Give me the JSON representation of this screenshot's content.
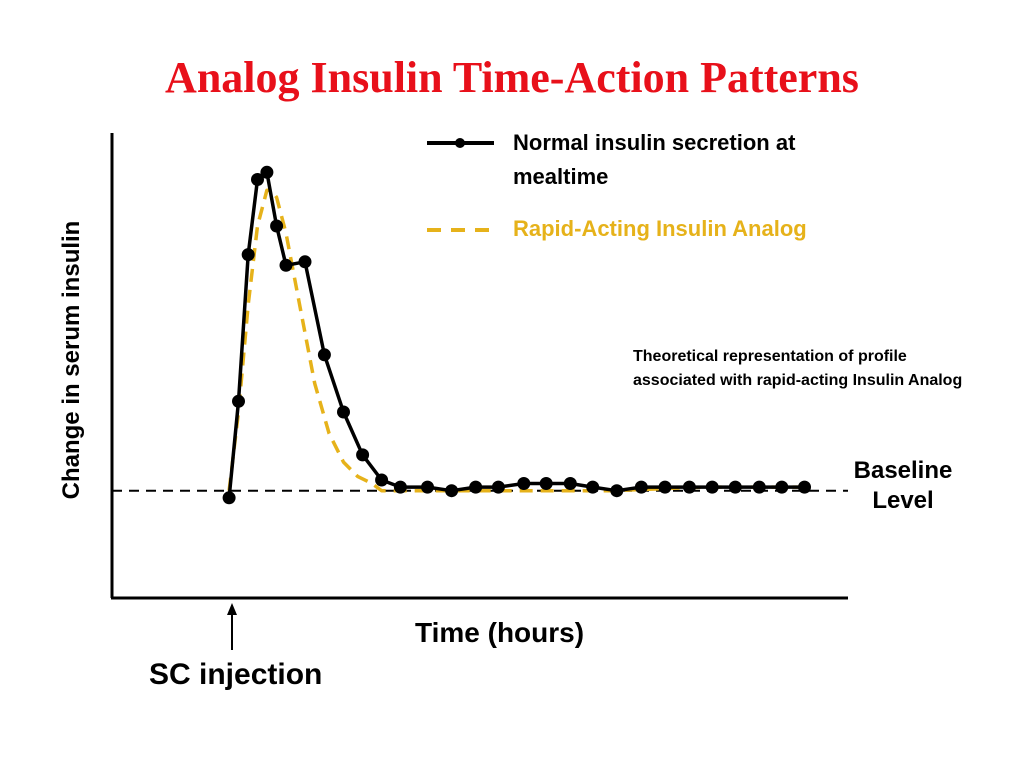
{
  "title": "Analog Insulin Time-Action Patterns",
  "legend": {
    "normal_label": "Normal insulin secretion at mealtime",
    "analog_label": "Rapid-Acting Insulin Analog"
  },
  "note": "Theoretical representation of profile associated with rapid-acting Insulin Analog",
  "baseline_label": "Baseline Level",
  "injection_label": "SC injection",
  "colors": {
    "title": "#e8101a",
    "analog": "#e6b21a",
    "normal": "#000000"
  },
  "chart_data": {
    "type": "line",
    "title": "Analog Insulin Time-Action Patterns",
    "xlabel": "Time (hours)",
    "ylabel": "Change in serum insulin",
    "xlim": [
      -3.5,
      18.5
    ],
    "ylim": [
      -0.3,
      1.0
    ],
    "grid": false,
    "legend_position": "top-right",
    "baseline": 0,
    "injection_x": 0,
    "series": [
      {
        "name": "Normal insulin secretion at mealtime",
        "style": "solid-markers",
        "color": "#000000",
        "x": [
          0,
          0.28,
          0.57,
          0.85,
          1.13,
          1.42,
          1.7,
          2.27,
          2.85,
          3.42,
          3.99,
          4.56,
          5.12,
          5.93,
          6.65,
          7.37,
          8.05,
          8.81,
          9.48,
          10.2,
          10.87,
          11.59,
          12.32,
          13.03,
          13.76,
          14.44,
          15.13,
          15.85,
          16.52,
          17.2
        ],
        "y": [
          -0.02,
          0.25,
          0.66,
          0.87,
          0.89,
          0.74,
          0.63,
          0.64,
          0.38,
          0.22,
          0.1,
          0.03,
          0.01,
          0.01,
          0.0,
          0.01,
          0.01,
          0.02,
          0.02,
          0.02,
          0.01,
          0.0,
          0.01,
          0.01,
          0.01,
          0.01,
          0.01,
          0.01,
          0.01,
          0.01
        ]
      },
      {
        "name": "Rapid-Acting Insulin Analog",
        "style": "dashed",
        "color": "#e6b21a",
        "x": [
          0,
          0.28,
          0.57,
          0.85,
          1.13,
          1.27,
          1.42,
          1.7,
          2.13,
          2.56,
          2.99,
          3.42,
          3.84,
          4.27,
          4.56,
          5.7,
          8.5,
          11.4,
          14.2,
          17.2
        ],
        "y": [
          0.0,
          0.22,
          0.52,
          0.74,
          0.84,
          0.84,
          0.82,
          0.72,
          0.51,
          0.3,
          0.16,
          0.08,
          0.04,
          0.02,
          0.0,
          0.0,
          0.0,
          0.0,
          0.01,
          0.01
        ]
      }
    ]
  }
}
